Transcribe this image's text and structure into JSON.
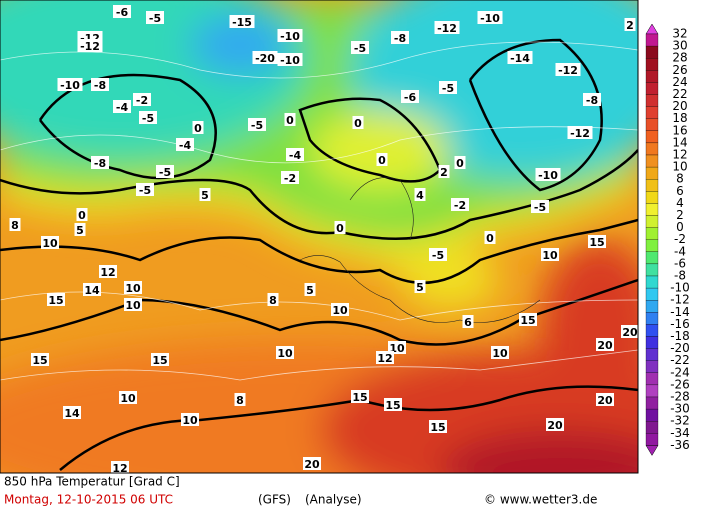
{
  "map": {
    "contour_labels": [
      "-6",
      "-5",
      "-12",
      "-12",
      "-10",
      "-8",
      "-4",
      "-2",
      "-5",
      "-4",
      "-8",
      "-5",
      "-5",
      "0",
      "5",
      "5",
      "8",
      "10",
      "12",
      "14",
      "15",
      "10",
      "10",
      "15",
      "10",
      "14",
      "10",
      "15",
      "10",
      "8",
      "12",
      "20",
      "15",
      "15",
      "20",
      "20",
      "20",
      "20",
      "15",
      "10",
      "10",
      "12",
      "15",
      "10",
      "5",
      "8",
      "10",
      "15",
      "0",
      "-5",
      "-10",
      "-12",
      "-12",
      "-8",
      "-14",
      "-10",
      "-12",
      "-8",
      "-5",
      "-10",
      "-15",
      "-10",
      "-20",
      "-5",
      "0",
      "0",
      "-4",
      "-2",
      "0",
      "0",
      "2",
      "0",
      "-2",
      "-5",
      "5",
      "6",
      "4",
      "0",
      "2",
      "-6",
      "-5"
    ],
    "colorbar": {
      "labels": [
        32,
        30,
        28,
        26,
        24,
        22,
        20,
        18,
        16,
        14,
        12,
        10,
        8,
        6,
        4,
        2,
        0,
        -2,
        -4,
        -6,
        -8,
        -10,
        -12,
        -14,
        -16,
        -18,
        -20,
        -22,
        -24,
        -26,
        -28,
        -30,
        -32,
        -34,
        -36
      ],
      "colors": [
        "#e040e0",
        "#c01890",
        "#8b0a1e",
        "#a01020",
        "#b01828",
        "#c02030",
        "#d03030",
        "#e04030",
        "#e85028",
        "#f06020",
        "#f07820",
        "#f09020",
        "#f0a818",
        "#f0c018",
        "#f0d818",
        "#f0f030",
        "#d0f030",
        "#a0f030",
        "#80f040",
        "#50e870",
        "#40e0a0",
        "#30d8d0",
        "#30c8f0",
        "#30a8f0",
        "#3080f0",
        "#3050f0",
        "#4030e0",
        "#6030d0",
        "#8030c0",
        "#a030b0",
        "#b040c0",
        "#9020a0",
        "#7010a0",
        "#801890",
        "#9018a0",
        "#a020b0"
      ]
    },
    "footer": {
      "title": "850 hPa Temperatur [Grad C]",
      "date": "Montag, 12-10-2015  06 UTC",
      "model": "(GFS)",
      "run": "(Analyse)",
      "credit": "© www.wetter3.de"
    }
  }
}
